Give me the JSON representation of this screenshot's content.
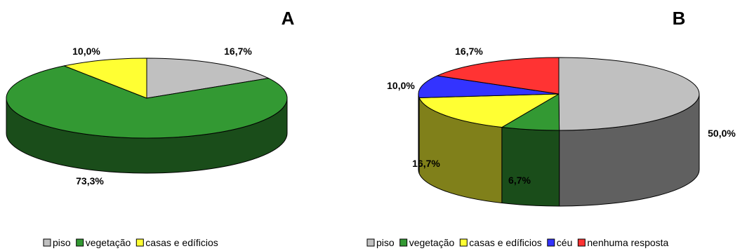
{
  "chart_data": [
    {
      "type": "pie",
      "title": "A",
      "slices": [
        {
          "label": "piso",
          "value": 16.7,
          "value_label": "16,7%",
          "color": "#c0c0c0"
        },
        {
          "label": "vegetação",
          "value": 73.3,
          "value_label": "73,3%",
          "color": "#339933"
        },
        {
          "label": "casas e edíficios",
          "value": 10.0,
          "value_label": "10,0%",
          "color": "#ffff33"
        }
      ],
      "legend": [
        "piso",
        "vegetação",
        "casas e edíficios"
      ],
      "legend_position": "bottom",
      "style": "3d"
    },
    {
      "type": "pie",
      "title": "B",
      "slices": [
        {
          "label": "piso",
          "value": 50.0,
          "value_label": "50,0%",
          "color": "#c0c0c0"
        },
        {
          "label": "vegetação",
          "value": 6.7,
          "value_label": "6,7%",
          "color": "#339933"
        },
        {
          "label": "casas e edíficios",
          "value": 16.7,
          "value_label": "16,7%",
          "color": "#ffff33"
        },
        {
          "label": "céu",
          "value": 10.0,
          "value_label": "10,0%",
          "color": "#3333ff"
        },
        {
          "label": "nenhuma resposta",
          "value": 16.7,
          "value_label": "16,7%",
          "color": "#ff3333"
        }
      ],
      "legend": [
        "piso",
        "vegetação",
        "casas e edíficios",
        "céu",
        "nenhuma resposta"
      ],
      "legend_position": "bottom",
      "style": "3d"
    }
  ]
}
